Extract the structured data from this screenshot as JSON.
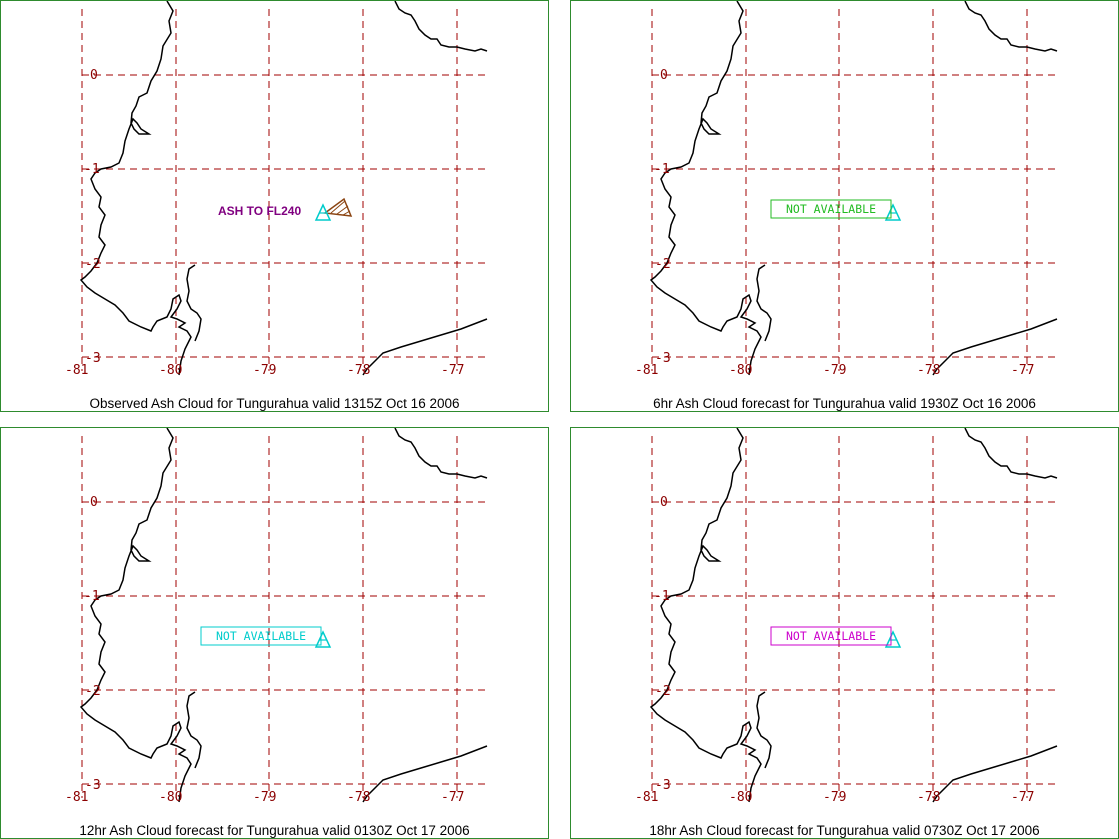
{
  "colors": {
    "panel_border": "#2e8b2e",
    "grid": "#a00000",
    "tick_text": "#8b0000",
    "coast": "#000000",
    "volcano": "#00cccc",
    "ash_polygon": "#8b4513",
    "ash_label": "#800080"
  },
  "map": {
    "x_ticks": [
      "-81",
      "-80",
      "-79",
      "-78",
      "-77"
    ],
    "y_ticks": [
      "0",
      "-1",
      "-2",
      "-3"
    ]
  },
  "panels": [
    {
      "caption": "Observed Ash Cloud for Tungurahua valid 1315Z Oct 16 2006",
      "label": "ASH TO FL240",
      "label_color": "#800080",
      "boxed": false,
      "has_ash_polygon": true,
      "volcano_icon": "volcano-triangle-icon"
    },
    {
      "caption": "6hr Ash Cloud forecast for Tungurahua valid 1930Z Oct 16 2006",
      "label": "NOT AVAILABLE",
      "label_color": "#22bb22",
      "boxed": true,
      "has_ash_polygon": false,
      "volcano_icon": "volcano-triangle-icon"
    },
    {
      "caption": "12hr Ash Cloud forecast for Tungurahua valid 0130Z Oct 17 2006",
      "label": "NOT AVAILABLE",
      "label_color": "#00cccc",
      "boxed": true,
      "has_ash_polygon": false,
      "volcano_icon": "volcano-triangle-icon"
    },
    {
      "caption": "18hr Ash Cloud forecast for Tungurahua valid 0730Z Oct 17 2006",
      "label": "NOT AVAILABLE",
      "label_color": "#cc00cc",
      "boxed": true,
      "has_ash_polygon": false,
      "volcano_icon": "volcano-triangle-icon"
    }
  ]
}
